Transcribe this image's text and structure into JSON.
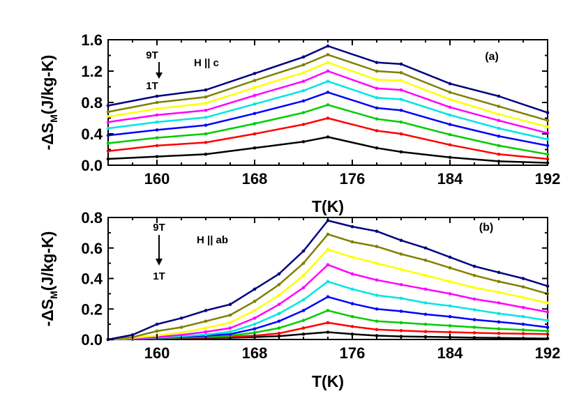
{
  "chart_data": [
    {
      "type": "line",
      "panel_label": "(a)",
      "annotation": "H || c",
      "field_top": "9T",
      "field_bottom": "1T",
      "xlabel": "T(K)",
      "ylabel": "-ΔS",
      "ylabel_sub": "M",
      "ylabel_units": "(J/kg-K)",
      "xlim": [
        156,
        192
      ],
      "ylim": [
        0,
        1.6
      ],
      "xticks": [
        160,
        168,
        176,
        184,
        192
      ],
      "yticks": [
        0.0,
        0.4,
        0.8,
        1.2,
        1.6
      ],
      "ytick_labels": [
        "0.0",
        "0.4",
        "0.8",
        "1.2",
        "1.6"
      ],
      "x": [
        156,
        160,
        164,
        168,
        172,
        174,
        178,
        180,
        184,
        188,
        192
      ],
      "series": [
        {
          "color": "#000000",
          "values": [
            0.08,
            0.11,
            0.14,
            0.22,
            0.3,
            0.36,
            0.22,
            0.17,
            0.1,
            0.05,
            0.03
          ]
        },
        {
          "color": "#ff0000",
          "values": [
            0.18,
            0.25,
            0.29,
            0.4,
            0.52,
            0.6,
            0.44,
            0.4,
            0.26,
            0.14,
            0.08
          ]
        },
        {
          "color": "#00cc00",
          "values": [
            0.28,
            0.35,
            0.4,
            0.53,
            0.67,
            0.77,
            0.59,
            0.55,
            0.39,
            0.25,
            0.14
          ]
        },
        {
          "color": "#0000ff",
          "values": [
            0.38,
            0.45,
            0.51,
            0.66,
            0.82,
            0.93,
            0.73,
            0.7,
            0.52,
            0.37,
            0.25
          ]
        },
        {
          "color": "#00e5e5",
          "values": [
            0.47,
            0.55,
            0.61,
            0.78,
            0.95,
            1.07,
            0.86,
            0.84,
            0.64,
            0.47,
            0.33
          ]
        },
        {
          "color": "#ff00ff",
          "values": [
            0.55,
            0.64,
            0.7,
            0.89,
            1.07,
            1.2,
            0.98,
            0.96,
            0.74,
            0.57,
            0.41
          ]
        },
        {
          "color": "#ffff00",
          "values": [
            0.62,
            0.72,
            0.79,
            0.99,
            1.18,
            1.31,
            1.09,
            1.08,
            0.84,
            0.65,
            0.49
          ]
        },
        {
          "color": "#808000",
          "values": [
            0.68,
            0.8,
            0.87,
            1.08,
            1.28,
            1.41,
            1.2,
            1.18,
            0.93,
            0.75,
            0.57
          ]
        },
        {
          "color": "#000080",
          "values": [
            0.76,
            0.88,
            0.96,
            1.17,
            1.38,
            1.52,
            1.31,
            1.29,
            1.04,
            0.88,
            0.67
          ]
        }
      ]
    },
    {
      "type": "line",
      "panel_label": "(b)",
      "annotation": "H || ab",
      "field_top": "9T",
      "field_bottom": "1T",
      "xlabel": "T(K)",
      "ylabel": "-ΔS",
      "ylabel_sub": "M",
      "ylabel_units": "(J/kg-K)",
      "xlim": [
        156,
        192
      ],
      "ylim": [
        0,
        0.8
      ],
      "xticks": [
        160,
        168,
        176,
        184,
        192
      ],
      "yticks": [
        0.0,
        0.2,
        0.4,
        0.6,
        0.8
      ],
      "ytick_labels": [
        "0.0",
        "0.2",
        "0.4",
        "0.6",
        "0.8"
      ],
      "x": [
        156,
        158,
        160,
        162,
        164,
        166,
        168,
        170,
        172,
        174,
        176,
        178,
        180,
        182,
        184,
        186,
        188,
        190,
        192
      ],
      "series": [
        {
          "color": "#000000",
          "values": [
            0.0,
            0.002,
            0.005,
            0.008,
            0.01,
            0.012,
            0.016,
            0.022,
            0.035,
            0.048,
            0.035,
            0.025,
            0.02,
            0.018,
            0.015,
            0.012,
            0.01,
            0.008,
            0.006
          ]
        },
        {
          "color": "#ff0000",
          "values": [
            0.0,
            0.003,
            0.006,
            0.01,
            0.013,
            0.017,
            0.025,
            0.04,
            0.075,
            0.11,
            0.085,
            0.065,
            0.058,
            0.052,
            0.048,
            0.044,
            0.04,
            0.038,
            0.035
          ]
        },
        {
          "color": "#00cc00",
          "values": [
            0.0,
            0.004,
            0.008,
            0.013,
            0.018,
            0.025,
            0.045,
            0.075,
            0.125,
            0.19,
            0.15,
            0.12,
            0.11,
            0.1,
            0.09,
            0.08,
            0.07,
            0.063,
            0.055
          ]
        },
        {
          "color": "#0000ff",
          "values": [
            0.0,
            0.005,
            0.01,
            0.016,
            0.024,
            0.035,
            0.07,
            0.12,
            0.19,
            0.28,
            0.235,
            0.2,
            0.185,
            0.165,
            0.15,
            0.13,
            0.115,
            0.1,
            0.08
          ]
        },
        {
          "color": "#00e5e5",
          "values": [
            0.0,
            0.006,
            0.012,
            0.02,
            0.032,
            0.05,
            0.1,
            0.17,
            0.26,
            0.38,
            0.33,
            0.29,
            0.27,
            0.24,
            0.22,
            0.195,
            0.17,
            0.15,
            0.125
          ]
        },
        {
          "color": "#ff00ff",
          "values": [
            0.0,
            0.007,
            0.015,
            0.03,
            0.05,
            0.075,
            0.14,
            0.23,
            0.34,
            0.49,
            0.43,
            0.39,
            0.36,
            0.33,
            0.3,
            0.265,
            0.24,
            0.21,
            0.18
          ]
        },
        {
          "color": "#ffff00",
          "values": [
            0.0,
            0.01,
            0.025,
            0.045,
            0.075,
            0.11,
            0.19,
            0.29,
            0.42,
            0.59,
            0.54,
            0.5,
            0.46,
            0.42,
            0.38,
            0.34,
            0.31,
            0.275,
            0.24
          ]
        },
        {
          "color": "#808000",
          "values": [
            0.0,
            0.015,
            0.055,
            0.08,
            0.12,
            0.16,
            0.25,
            0.36,
            0.5,
            0.69,
            0.64,
            0.61,
            0.56,
            0.52,
            0.47,
            0.42,
            0.38,
            0.345,
            0.3
          ]
        },
        {
          "color": "#000080",
          "values": [
            0.0,
            0.03,
            0.1,
            0.14,
            0.19,
            0.23,
            0.33,
            0.43,
            0.58,
            0.78,
            0.74,
            0.71,
            0.65,
            0.6,
            0.54,
            0.48,
            0.44,
            0.4,
            0.35
          ]
        }
      ]
    }
  ]
}
